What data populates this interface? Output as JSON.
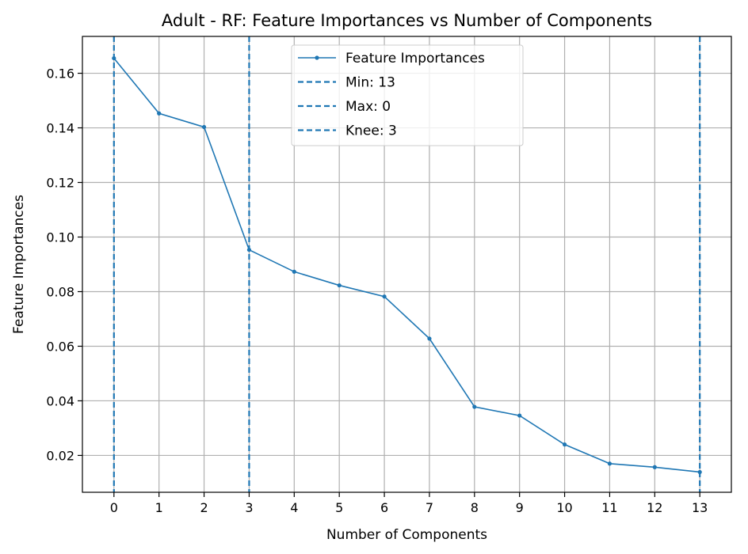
{
  "chart_data": {
    "type": "line",
    "title": "Adult - RF: Feature Importances vs Number of Components",
    "xlabel": "Number of Components",
    "ylabel": "Feature Importances",
    "x": [
      0,
      1,
      2,
      3,
      4,
      5,
      6,
      7,
      8,
      9,
      10,
      11,
      12,
      13
    ],
    "xlim": [
      -0.7,
      13.7
    ],
    "ylim": [
      0.0065,
      0.1735
    ],
    "xticks": [
      "0",
      "1",
      "2",
      "3",
      "4",
      "5",
      "6",
      "7",
      "8",
      "9",
      "10",
      "11",
      "12",
      "13"
    ],
    "yticks": [
      0.02,
      0.04,
      0.06,
      0.08,
      0.1,
      0.12,
      0.14,
      0.16
    ],
    "ytick_labels": [
      "0.02",
      "0.04",
      "0.06",
      "0.08",
      "0.10",
      "0.12",
      "0.14",
      "0.16"
    ],
    "grid": true,
    "legend_position": "top-center",
    "series": [
      {
        "name": "Feature Importances",
        "color": "#1f77b4",
        "values": [
          0.1655,
          0.1453,
          0.1403,
          0.0953,
          0.0873,
          0.0823,
          0.0782,
          0.0628,
          0.0378,
          0.0346,
          0.024,
          0.017,
          0.0157,
          0.0139
        ]
      }
    ],
    "vlines": [
      {
        "label": "Min: 13",
        "x": 13,
        "color": "#1f77b4",
        "style": "dashed"
      },
      {
        "label": "Max: 0",
        "x": 0,
        "color": "#1f77b4",
        "style": "dashed"
      },
      {
        "label": "Knee: 3",
        "x": 3,
        "color": "#1f77b4",
        "style": "dashed"
      }
    ]
  }
}
